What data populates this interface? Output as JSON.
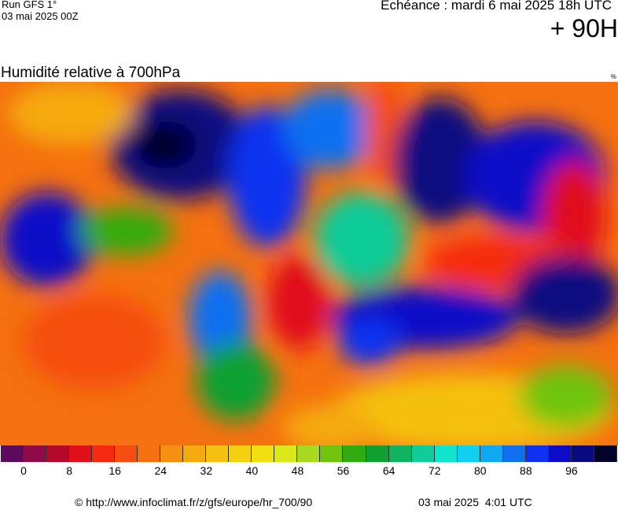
{
  "header": {
    "run": "Run GFS 1°",
    "run_date": "03 mai 2025 00Z",
    "forecast": "Echéance : mardi 6 mai 2025 18h UTC",
    "lead": "+ 90H"
  },
  "map": {
    "title": "Humidité relative à 700hPa",
    "unit": "%"
  },
  "colorbar": {
    "colors": [
      "#5c0a5c",
      "#8e0a48",
      "#b30a2a",
      "#e0101a",
      "#f52a10",
      "#f54e10",
      "#f57010",
      "#f59010",
      "#f5aa10",
      "#f5c010",
      "#f5d010",
      "#f0e010",
      "#d8e818",
      "#a8d820",
      "#70c410",
      "#30ac10",
      "#10a030",
      "#10b460",
      "#10cc98",
      "#10e4cc",
      "#10d0f0",
      "#10a8f0",
      "#1070f0",
      "#1030f0",
      "#0c0cc8",
      "#0a0a80",
      "#04042a"
    ],
    "ticks": [
      0,
      8,
      16,
      24,
      32,
      40,
      48,
      56,
      64,
      72,
      80,
      88,
      96
    ]
  },
  "footer": {
    "source": "© http://www.infoclimat.fr/z/gfs/europe/hr_700/90",
    "generated": "03 mai 2025  4:01 UTC"
  }
}
